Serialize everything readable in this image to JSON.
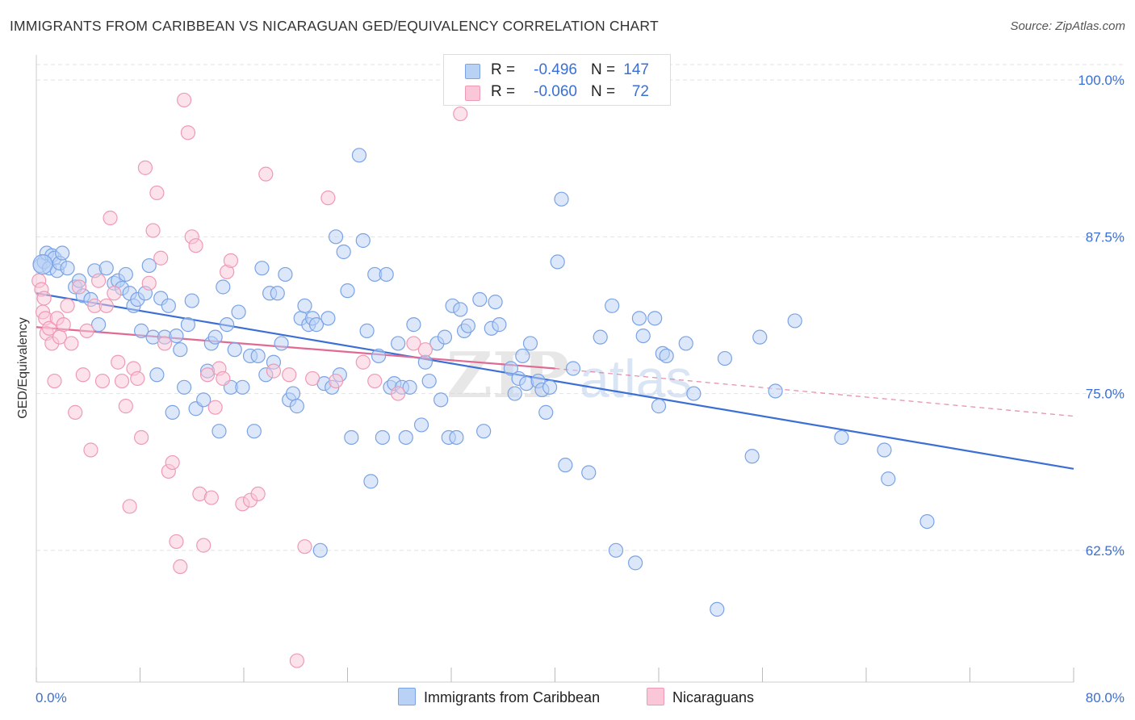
{
  "title": "IMMIGRANTS FROM CARIBBEAN VS NICARAGUAN GED/EQUIVALENCY CORRELATION CHART",
  "source": "Source: ZipAtlas.com",
  "watermark": "ZIPatlas",
  "legend": {
    "r_label": "R =",
    "n_label": "N =",
    "series": [
      {
        "r": "-0.496",
        "n": "147",
        "fill": "#b9d1f5",
        "stroke": "#7aa3e6"
      },
      {
        "r": "-0.060",
        "n": "72",
        "fill": "#f9c7d7",
        "stroke": "#ef9ab5"
      }
    ]
  },
  "bottom_legend": [
    "Immigrants from Caribbean",
    "Nicaraguans"
  ],
  "chart_data": {
    "type": "scatter",
    "xlabel": "",
    "ylabel": "GED/Equivalency",
    "xlim": [
      0,
      80
    ],
    "ylim": [
      52,
      102
    ],
    "x_tick_labels": [
      "0.0%",
      "80.0%"
    ],
    "y_ticks": [
      62.5,
      75.0,
      87.5,
      100.0
    ],
    "y_tick_labels": [
      "62.5%",
      "75.0%",
      "87.5%",
      "100.0%"
    ],
    "grid": "horizontal dashed",
    "colors": {
      "blue": "#3b6fd4",
      "pink": "#e06a94"
    },
    "series": [
      {
        "name": "Immigrants from Caribbean",
        "color": "#7aa3e6",
        "trend": {
          "x": [
            0,
            80
          ],
          "y": [
            83.0,
            69.0
          ],
          "style": "solid",
          "color": "#3b6fd4"
        },
        "points": [
          [
            0.3,
            85.2
          ],
          [
            0.6,
            85.5
          ],
          [
            0.8,
            86.2
          ],
          [
            1.0,
            85.0
          ],
          [
            1.2,
            86.0
          ],
          [
            1.4,
            85.8
          ],
          [
            1.6,
            84.8
          ],
          [
            1.8,
            85.4
          ],
          [
            2.0,
            86.2
          ],
          [
            2.4,
            85.0
          ],
          [
            3.0,
            83.5
          ],
          [
            3.3,
            84.0
          ],
          [
            3.6,
            82.8
          ],
          [
            4.2,
            82.5
          ],
          [
            4.5,
            84.8
          ],
          [
            4.8,
            80.5
          ],
          [
            5.4,
            85.0
          ],
          [
            6.0,
            83.8
          ],
          [
            6.3,
            84.0
          ],
          [
            6.6,
            83.4
          ],
          [
            6.9,
            84.5
          ],
          [
            7.2,
            83.0
          ],
          [
            7.5,
            82.0
          ],
          [
            7.8,
            82.5
          ],
          [
            8.1,
            80.0
          ],
          [
            8.4,
            83.0
          ],
          [
            8.7,
            85.2
          ],
          [
            9.0,
            79.5
          ],
          [
            9.3,
            76.5
          ],
          [
            9.6,
            82.6
          ],
          [
            9.9,
            79.5
          ],
          [
            10.2,
            82.0
          ],
          [
            10.5,
            73.5
          ],
          [
            10.8,
            79.6
          ],
          [
            11.1,
            78.5
          ],
          [
            11.4,
            75.5
          ],
          [
            11.7,
            80.5
          ],
          [
            12.0,
            82.4
          ],
          [
            12.3,
            73.8
          ],
          [
            12.9,
            74.5
          ],
          [
            13.2,
            76.8
          ],
          [
            13.5,
            79.0
          ],
          [
            13.8,
            79.5
          ],
          [
            14.1,
            72.0
          ],
          [
            14.4,
            83.5
          ],
          [
            14.7,
            80.5
          ],
          [
            15.0,
            75.5
          ],
          [
            15.3,
            78.5
          ],
          [
            15.6,
            81.5
          ],
          [
            15.9,
            75.5
          ],
          [
            16.5,
            78.0
          ],
          [
            16.8,
            72.0
          ],
          [
            17.1,
            78.0
          ],
          [
            17.4,
            85.0
          ],
          [
            17.7,
            76.5
          ],
          [
            18.0,
            83.0
          ],
          [
            18.3,
            77.5
          ],
          [
            18.6,
            83.0
          ],
          [
            18.9,
            79.0
          ],
          [
            19.2,
            84.5
          ],
          [
            19.5,
            74.5
          ],
          [
            19.8,
            75.0
          ],
          [
            20.1,
            74.0
          ],
          [
            20.4,
            81.0
          ],
          [
            20.7,
            82.0
          ],
          [
            21.0,
            80.5
          ],
          [
            21.3,
            81.0
          ],
          [
            21.6,
            80.5
          ],
          [
            21.9,
            62.5
          ],
          [
            22.2,
            75.8
          ],
          [
            22.5,
            81.0
          ],
          [
            22.8,
            75.5
          ],
          [
            23.1,
            87.5
          ],
          [
            23.4,
            76.5
          ],
          [
            23.7,
            86.3
          ],
          [
            24.0,
            83.2
          ],
          [
            24.3,
            71.5
          ],
          [
            24.9,
            94.0
          ],
          [
            25.2,
            87.2
          ],
          [
            25.5,
            80.0
          ],
          [
            25.8,
            68.0
          ],
          [
            26.1,
            84.5
          ],
          [
            26.4,
            78.0
          ],
          [
            26.7,
            71.5
          ],
          [
            27.0,
            84.5
          ],
          [
            27.3,
            75.5
          ],
          [
            27.6,
            75.8
          ],
          [
            27.9,
            79.0
          ],
          [
            28.2,
            75.5
          ],
          [
            28.5,
            71.5
          ],
          [
            28.8,
            75.5
          ],
          [
            29.1,
            80.5
          ],
          [
            29.7,
            72.5
          ],
          [
            30.0,
            77.5
          ],
          [
            30.3,
            76.0
          ],
          [
            30.9,
            79.0
          ],
          [
            31.2,
            74.5
          ],
          [
            31.5,
            79.5
          ],
          [
            31.8,
            71.5
          ],
          [
            32.1,
            82.0
          ],
          [
            32.4,
            71.5
          ],
          [
            32.7,
            81.7
          ],
          [
            33.0,
            80.0
          ],
          [
            33.3,
            80.4
          ],
          [
            34.2,
            82.5
          ],
          [
            34.5,
            72.0
          ],
          [
            35.1,
            80.2
          ],
          [
            35.4,
            82.3
          ],
          [
            35.7,
            80.5
          ],
          [
            36.6,
            77.0
          ],
          [
            36.9,
            75.0
          ],
          [
            37.2,
            76.2
          ],
          [
            37.5,
            78.0
          ],
          [
            37.8,
            75.8
          ],
          [
            38.1,
            79.0
          ],
          [
            38.7,
            76.0
          ],
          [
            39.0,
            75.3
          ],
          [
            39.3,
            73.5
          ],
          [
            39.6,
            75.5
          ],
          [
            40.2,
            85.5
          ],
          [
            40.5,
            90.5
          ],
          [
            40.8,
            69.3
          ],
          [
            41.4,
            77.0
          ],
          [
            42.6,
            68.7
          ],
          [
            43.5,
            79.5
          ],
          [
            44.4,
            82.0
          ],
          [
            44.7,
            62.5
          ],
          [
            46.2,
            61.5
          ],
          [
            46.5,
            81.0
          ],
          [
            46.8,
            79.6
          ],
          [
            47.7,
            81.0
          ],
          [
            48.0,
            74.0
          ],
          [
            48.3,
            78.2
          ],
          [
            48.6,
            78.0
          ],
          [
            50.1,
            79.0
          ],
          [
            50.7,
            75.0
          ],
          [
            52.5,
            57.8
          ],
          [
            53.1,
            77.8
          ],
          [
            55.2,
            70.0
          ],
          [
            55.8,
            79.5
          ],
          [
            57.0,
            75.2
          ],
          [
            58.5,
            80.8
          ],
          [
            62.1,
            71.5
          ],
          [
            65.4,
            70.5
          ],
          [
            65.7,
            68.2
          ],
          [
            68.7,
            64.8
          ]
        ]
      },
      {
        "name": "Nicaraguans",
        "color": "#ef9ab5",
        "trend": {
          "x": [
            0,
            40
          ],
          "y": [
            80.3,
            77.0
          ],
          "style": "solid",
          "color": "#e06a94",
          "ext_x": [
            40,
            80
          ],
          "ext_y": [
            77.0,
            73.2
          ],
          "ext_style": "dashed"
        },
        "points": [
          [
            0.2,
            84.0
          ],
          [
            0.4,
            83.3
          ],
          [
            0.5,
            81.5
          ],
          [
            0.6,
            82.6
          ],
          [
            0.7,
            81.0
          ],
          [
            0.8,
            79.8
          ],
          [
            1.0,
            80.2
          ],
          [
            1.2,
            79.0
          ],
          [
            1.4,
            76.0
          ],
          [
            1.6,
            81.0
          ],
          [
            1.8,
            79.5
          ],
          [
            2.1,
            80.5
          ],
          [
            2.4,
            82.0
          ],
          [
            2.7,
            79.0
          ],
          [
            3.0,
            73.5
          ],
          [
            3.3,
            83.5
          ],
          [
            3.6,
            76.5
          ],
          [
            3.9,
            80.0
          ],
          [
            4.2,
            70.5
          ],
          [
            4.5,
            82.0
          ],
          [
            4.8,
            84.0
          ],
          [
            5.1,
            76.0
          ],
          [
            5.4,
            82.0
          ],
          [
            5.7,
            89.0
          ],
          [
            6.0,
            83.0
          ],
          [
            6.3,
            77.5
          ],
          [
            6.6,
            76.0
          ],
          [
            6.9,
            74.0
          ],
          [
            7.2,
            66.0
          ],
          [
            7.5,
            77.0
          ],
          [
            7.8,
            76.2
          ],
          [
            8.1,
            71.5
          ],
          [
            8.4,
            93.0
          ],
          [
            8.7,
            83.8
          ],
          [
            9.0,
            88.0
          ],
          [
            9.3,
            91.0
          ],
          [
            9.6,
            85.8
          ],
          [
            9.9,
            79.0
          ],
          [
            10.2,
            68.8
          ],
          [
            10.5,
            69.5
          ],
          [
            10.8,
            63.2
          ],
          [
            11.1,
            61.2
          ],
          [
            11.4,
            98.4
          ],
          [
            11.7,
            95.8
          ],
          [
            12.0,
            87.5
          ],
          [
            12.3,
            86.8
          ],
          [
            12.6,
            67.0
          ],
          [
            12.9,
            62.9
          ],
          [
            13.2,
            76.5
          ],
          [
            13.5,
            66.7
          ],
          [
            13.8,
            73.9
          ],
          [
            14.1,
            77.0
          ],
          [
            14.4,
            76.2
          ],
          [
            14.7,
            84.7
          ],
          [
            15.0,
            85.6
          ],
          [
            15.9,
            66.2
          ],
          [
            16.5,
            66.5
          ],
          [
            17.1,
            67.0
          ],
          [
            17.7,
            92.5
          ],
          [
            18.3,
            76.8
          ],
          [
            19.5,
            76.5
          ],
          [
            20.1,
            53.7
          ],
          [
            20.7,
            62.8
          ],
          [
            21.3,
            76.2
          ],
          [
            22.5,
            90.6
          ],
          [
            23.1,
            76.0
          ],
          [
            25.2,
            77.5
          ],
          [
            26.1,
            76.0
          ],
          [
            27.9,
            75.0
          ],
          [
            29.1,
            79.0
          ],
          [
            30.0,
            78.5
          ],
          [
            32.7,
            97.3
          ]
        ]
      }
    ]
  }
}
